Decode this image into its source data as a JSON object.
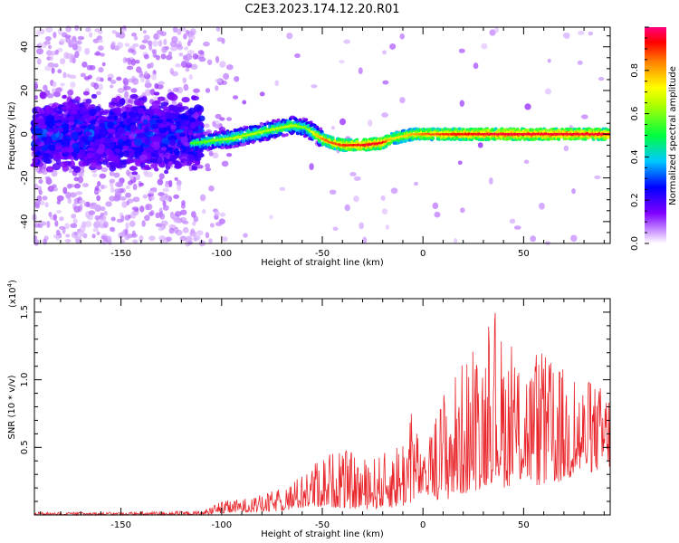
{
  "title": "C2E3.2023.174.12.20.R01",
  "colors": {
    "series": "#e8262b",
    "track": "#ff2a10",
    "background": "#ffffff",
    "axis": "#000000"
  },
  "chart_data": [
    {
      "type": "heatmap",
      "title": "C2E3.2023.174.12.20.R01",
      "xlabel": "Height of straight line (km)",
      "ylabel": "Frequency (Hz)",
      "xlim": [
        -193,
        93
      ],
      "ylim": [
        -50,
        49
      ],
      "x_ticks": [
        "-150",
        "-100",
        "-50",
        "0",
        "50"
      ],
      "x_tick_values": [
        -150,
        -100,
        -50,
        0,
        50
      ],
      "y_ticks": [
        "40",
        "20",
        "0",
        "-20",
        "-40"
      ],
      "y_tick_values": [
        40,
        20,
        0,
        -20,
        -40
      ],
      "grid": false,
      "colorbar": {
        "label": "Normalized spectral amplitude",
        "range": [
          0,
          1
        ],
        "ticks": [
          "0.0",
          "0.2",
          "0.4",
          "0.6",
          "0.8"
        ],
        "tick_values": [
          0,
          0.2,
          0.4,
          0.6,
          0.8
        ],
        "colormap": [
          "#ffffff",
          "#8000ff",
          "#0000ff",
          "#00ffff",
          "#00ff00",
          "#ffff00",
          "#ff8000",
          "#ff0000",
          "#ff0080"
        ]
      },
      "ridge": {
        "description_points_x": [
          -113,
          -105,
          -95,
          -85,
          -75,
          -65,
          -58,
          -50,
          -45,
          -40,
          -30,
          -20,
          -15,
          -10,
          -5,
          0,
          10,
          20,
          30,
          40,
          50,
          60,
          70,
          80,
          92
        ],
        "frequency": [
          -4,
          -3,
          -2,
          0,
          2,
          4,
          3,
          -2,
          -4,
          -5,
          -5,
          -4,
          -2,
          -1,
          0,
          0,
          0,
          0,
          0,
          0,
          0,
          0,
          0,
          0,
          0
        ],
        "amplitude": [
          0.5,
          0.55,
          0.6,
          0.6,
          0.6,
          0.62,
          0.55,
          0.8,
          0.82,
          0.85,
          0.9,
          0.9,
          0.7,
          0.7,
          0.75,
          0.8,
          0.85,
          0.88,
          0.9,
          0.92,
          0.92,
          0.92,
          0.92,
          0.92,
          0.9
        ]
      }
    },
    {
      "type": "line",
      "xlabel": "Height of straight line (km)",
      "ylabel": "SNR (10 * v/v)",
      "y_scale_label": "(x10",
      "y_scale_exponent": "4",
      "y_scale_suffix": ")",
      "xlim": [
        -193,
        93
      ],
      "ylim": [
        0,
        1.6
      ],
      "x_ticks": [
        "-150",
        "-100",
        "-50",
        "0",
        "50"
      ],
      "x_tick_values": [
        -150,
        -100,
        -50,
        0,
        50
      ],
      "y_ticks": [
        "1.5",
        "1.0",
        "0.5"
      ],
      "y_tick_values": [
        1.5,
        1.0,
        0.5
      ],
      "grid": false,
      "series": [
        {
          "color": "#e8262b",
          "envelope_x": [
            -193,
            -150,
            -110,
            -100,
            -90,
            -80,
            -70,
            -60,
            -50,
            -40,
            -30,
            -20,
            -10,
            -5,
            0,
            10,
            20,
            30,
            35,
            40,
            50,
            60,
            70,
            80,
            93
          ],
          "envelope_max": [
            0.02,
            0.02,
            0.03,
            0.1,
            0.12,
            0.15,
            0.2,
            0.3,
            0.45,
            0.5,
            0.42,
            0.45,
            0.6,
            0.8,
            0.4,
            0.95,
            1.15,
            1.3,
            1.55,
            1.3,
            1.2,
            1.2,
            1.1,
            1.0,
            0.95
          ],
          "envelope_min": [
            0.0,
            0.0,
            0.0,
            0.01,
            0.02,
            0.02,
            0.03,
            0.05,
            0.06,
            0.05,
            0.04,
            0.05,
            0.06,
            0.1,
            0.15,
            0.1,
            0.15,
            0.2,
            0.25,
            0.2,
            0.25,
            0.2,
            0.25,
            0.3,
            0.35
          ]
        }
      ]
    }
  ]
}
